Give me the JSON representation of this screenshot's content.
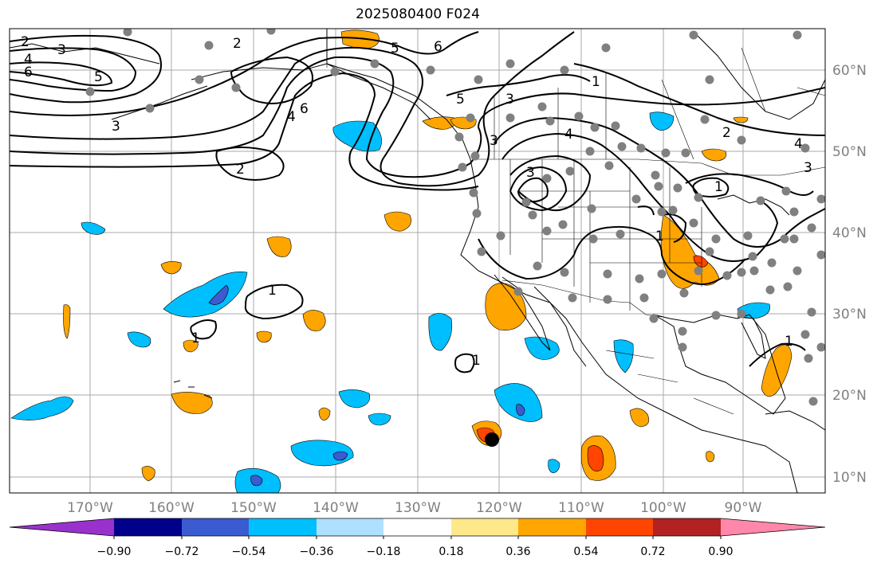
{
  "title": "2025080400 F024",
  "map": {
    "longitude_labels": [
      "170°W",
      "160°W",
      "150°W",
      "140°W",
      "130°W",
      "120°W",
      "110°W",
      "100°W",
      "90°W"
    ],
    "latitude_labels": [
      "60°N",
      "50°N",
      "40°N",
      "30°N",
      "20°N",
      "10°N"
    ],
    "contour_labels": [
      "2",
      "3",
      "4",
      "6",
      "5",
      "3",
      "2",
      "6",
      "4",
      "5",
      "6",
      "5",
      "3",
      "1",
      "3",
      "4",
      "3",
      "2",
      "4",
      "3",
      "1",
      "1",
      "1",
      "1",
      "1",
      "1",
      "2"
    ],
    "colors": {
      "land_outline": "#000000",
      "grid": "#aaaaaa",
      "station_dots": "#808080",
      "storm_marker": "#000000"
    }
  },
  "colorbar": {
    "ticks": [
      "−0.90",
      "−0.72",
      "−0.54",
      "−0.36",
      "−0.18",
      "0.18",
      "0.36",
      "0.54",
      "0.72",
      "0.90"
    ],
    "colors": [
      "#9932cc",
      "#00008b",
      "#3a5bd1",
      "#00bfff",
      "#b0e0ff",
      "#ffffff",
      "#ffe88a",
      "#ffa500",
      "#ff4500",
      "#b22222",
      "#ff88aa"
    ]
  }
}
